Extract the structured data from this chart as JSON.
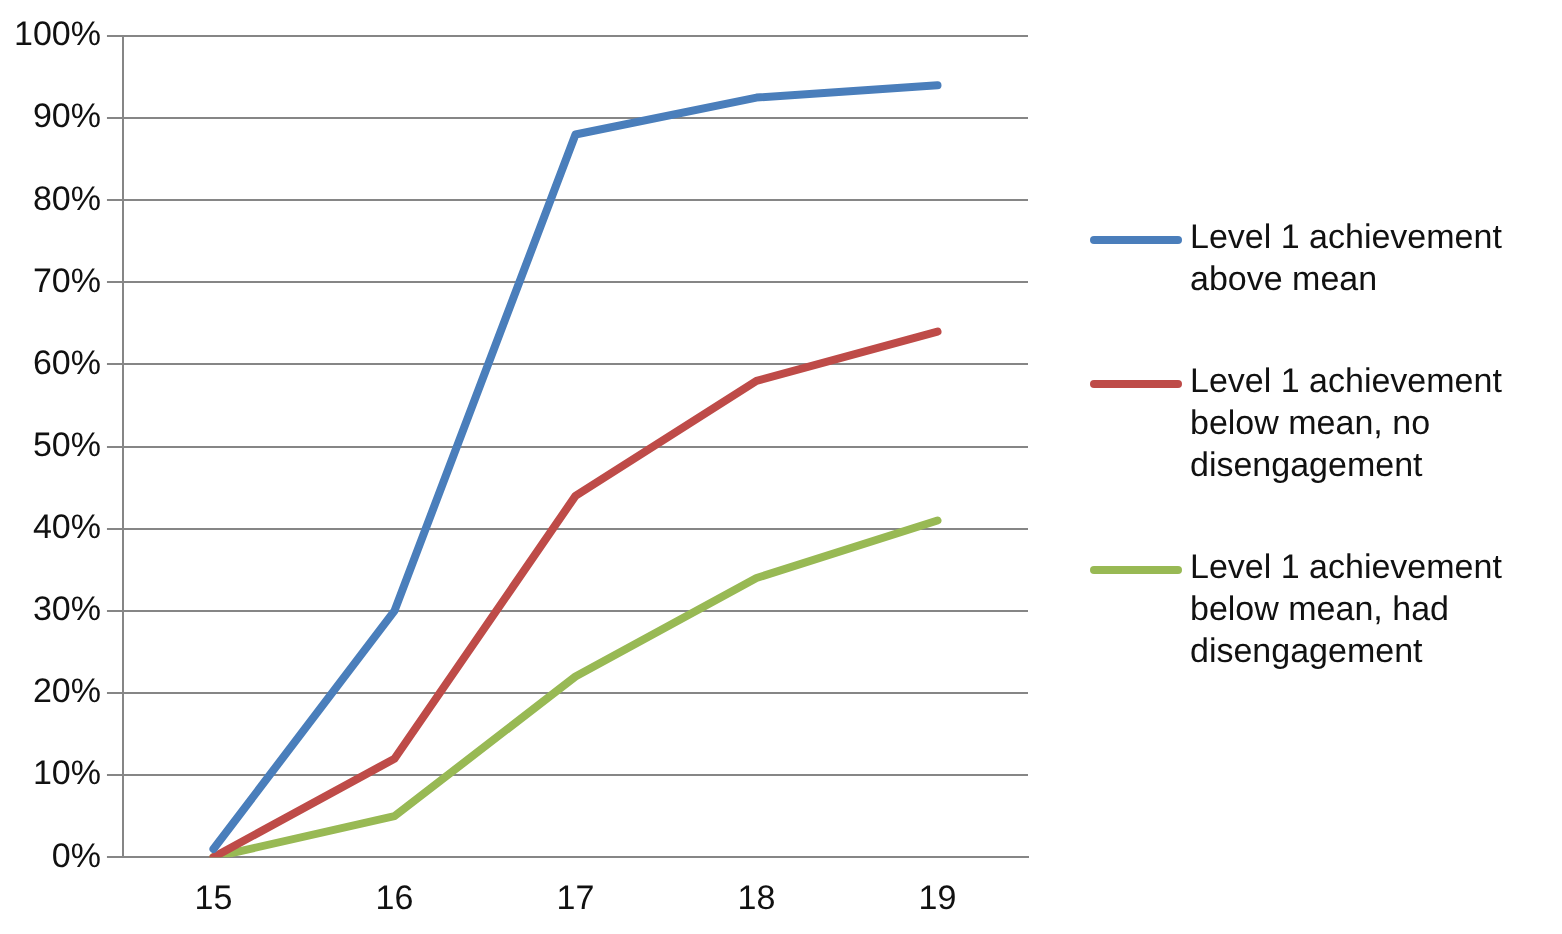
{
  "chart_data": {
    "type": "line",
    "categories": [
      "15",
      "16",
      "17",
      "18",
      "19"
    ],
    "series": [
      {
        "name": "Level 1 achievement above mean",
        "color": "#4a7ebb",
        "values": [
          1,
          30,
          88,
          92.5,
          94
        ]
      },
      {
        "name": "Level 1 achievement below mean, no disengagement",
        "color": "#be4b48",
        "values": [
          0,
          12,
          44,
          58,
          64
        ]
      },
      {
        "name": "Level 1 achievement below mean, had disengagement",
        "color": "#98b954",
        "values": [
          0,
          5,
          22,
          34,
          41
        ]
      }
    ],
    "ylim": [
      0,
      100
    ],
    "yticks": [
      {
        "value": 0,
        "label": "0%"
      },
      {
        "value": 10,
        "label": "10%"
      },
      {
        "value": 20,
        "label": "20%"
      },
      {
        "value": 30,
        "label": "30%"
      },
      {
        "value": 40,
        "label": "40%"
      },
      {
        "value": 50,
        "label": "50%"
      },
      {
        "value": 60,
        "label": "60%"
      },
      {
        "value": 70,
        "label": "70%"
      },
      {
        "value": 80,
        "label": "80%"
      },
      {
        "value": 90,
        "label": "90%"
      },
      {
        "value": 100,
        "label": "100%"
      }
    ],
    "grid": "y",
    "legend": "right",
    "marker": "none",
    "line_style": "solid"
  }
}
